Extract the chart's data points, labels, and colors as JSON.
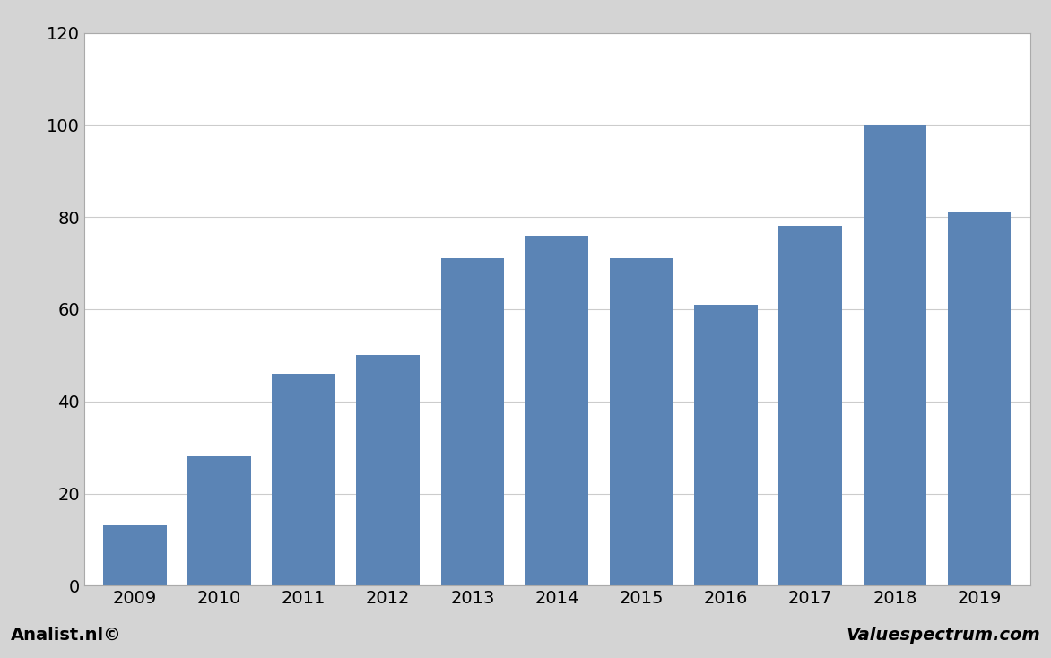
{
  "categories": [
    "2009",
    "2010",
    "2011",
    "2012",
    "2013",
    "2014",
    "2015",
    "2016",
    "2017",
    "2018",
    "2019"
  ],
  "values": [
    13,
    28,
    46,
    50,
    71,
    76,
    71,
    61,
    78,
    100,
    81
  ],
  "bar_color": "#5b84b5",
  "ylim": [
    0,
    120
  ],
  "yticks": [
    0,
    20,
    40,
    60,
    80,
    100,
    120
  ],
  "background_color": "#d4d4d4",
  "plot_bg_color": "#ffffff",
  "grid_color": "#cccccc",
  "footer_left": "Analist.nl©",
  "footer_right": "Valuespectrum.com",
  "footer_fontsize": 14,
  "tick_fontsize": 14,
  "bar_width": 0.75
}
